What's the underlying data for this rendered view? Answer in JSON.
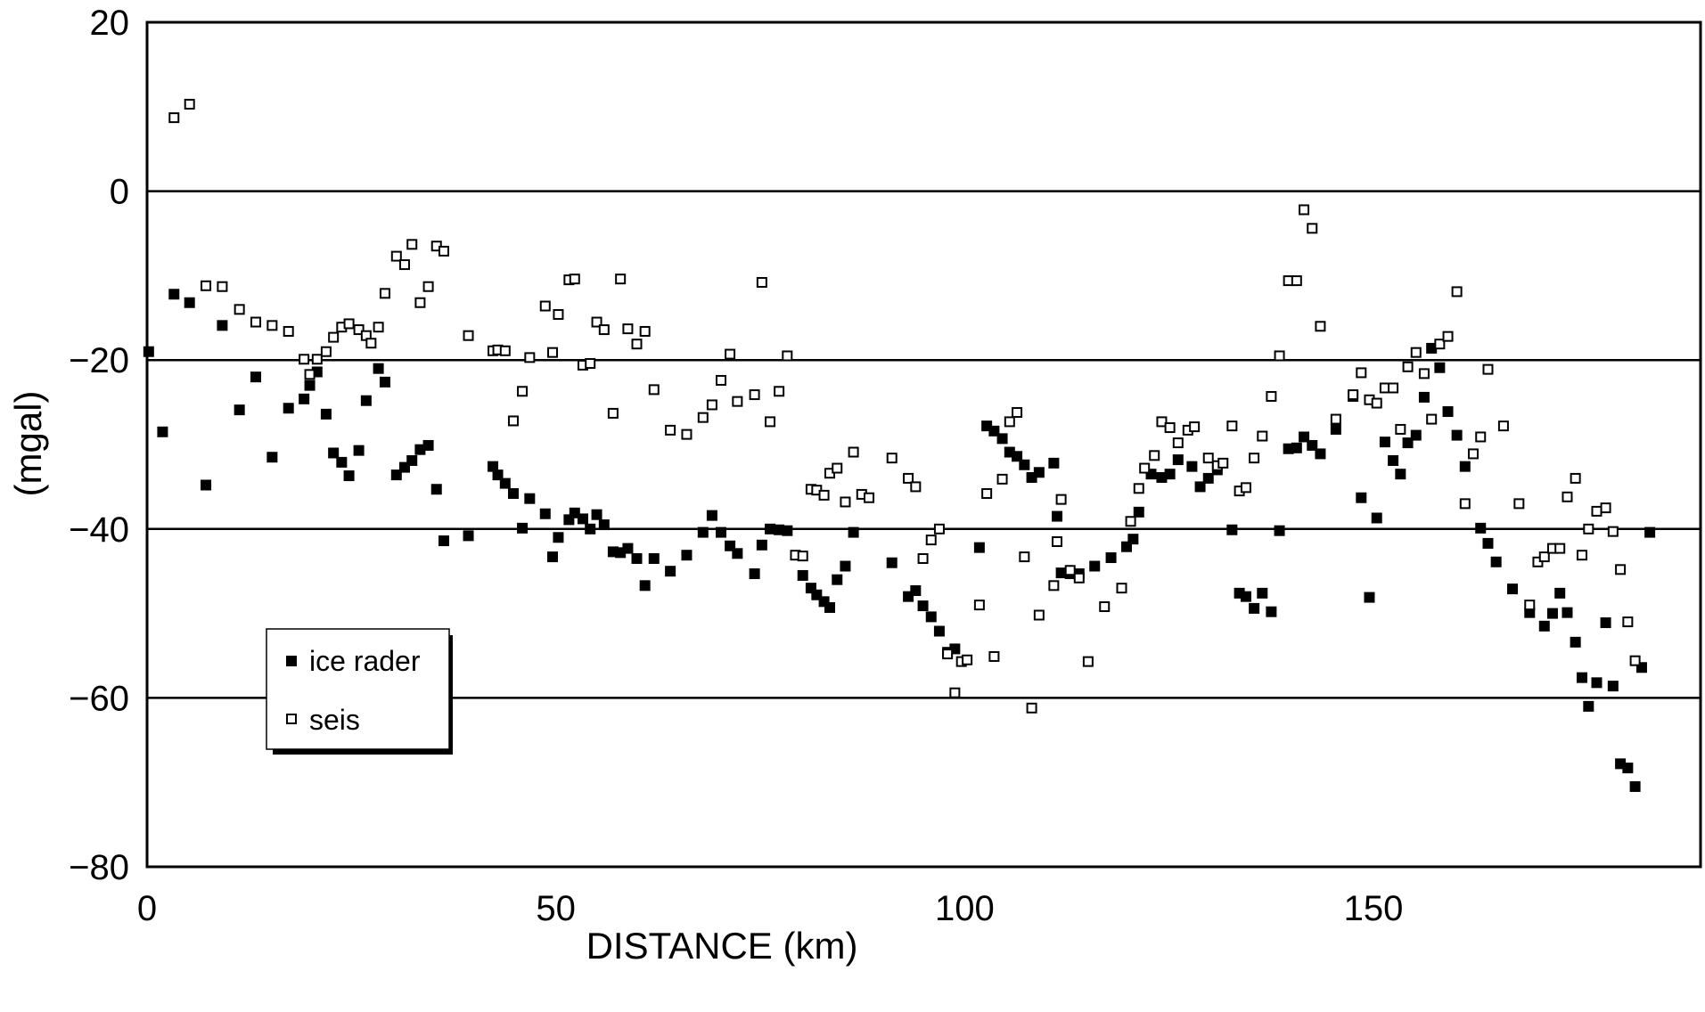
{
  "chart_data": {
    "type": "scatter",
    "title": "",
    "xlabel": "DISTANCE (km)",
    "ylabel": "(mgal)",
    "xlim": [
      0,
      190
    ],
    "ylim": [
      -80,
      20
    ],
    "xticks": [
      0,
      50,
      100,
      150
    ],
    "xtick_labels": [
      "0",
      "50",
      "100",
      "150"
    ],
    "yticks": [
      20,
      0,
      -20,
      -40,
      -60,
      -80
    ],
    "ytick_labels": [
      "20",
      "0",
      "−20",
      "−40",
      "−60",
      "−80"
    ],
    "grid": "horizontal lines at 0, −20, −40, −60",
    "legend_position": "bottom-left",
    "series": [
      {
        "name": "ice rader",
        "marker": "filled-square",
        "color": "#000000",
        "points": [
          [
            0.2,
            -19
          ],
          [
            1.9,
            -28.5
          ],
          [
            3.3,
            -12.2
          ],
          [
            5.2,
            -13.2
          ],
          [
            7.2,
            -34.8
          ],
          [
            9.2,
            -15.9
          ],
          [
            11.3,
            -25.9
          ],
          [
            13.3,
            -22
          ],
          [
            15.3,
            -31.5
          ],
          [
            17.3,
            -25.7
          ],
          [
            19.2,
            -24.6
          ],
          [
            19.9,
            -23
          ],
          [
            20.8,
            -21.4
          ],
          [
            21.9,
            -26.4
          ],
          [
            22.8,
            -31
          ],
          [
            23.8,
            -32.1
          ],
          [
            24.7,
            -33.7
          ],
          [
            25.9,
            -30.7
          ],
          [
            26.8,
            -24.8
          ],
          [
            28.3,
            -21
          ],
          [
            29.1,
            -22.6
          ],
          [
            30.5,
            -33.6
          ],
          [
            31.5,
            -32.7
          ],
          [
            32.4,
            -31.9
          ],
          [
            33.4,
            -30.6
          ],
          [
            34.4,
            -30.1
          ],
          [
            35.4,
            -35.3
          ],
          [
            36.3,
            -41.4
          ],
          [
            39.3,
            -40.8
          ],
          [
            42.3,
            -32.6
          ],
          [
            42.9,
            -33.6
          ],
          [
            43.8,
            -34.6
          ],
          [
            44.8,
            -35.8
          ],
          [
            45.9,
            -39.9
          ],
          [
            46.8,
            -36.4
          ],
          [
            48.7,
            -38.2
          ],
          [
            49.6,
            -43.3
          ],
          [
            50.3,
            -41
          ],
          [
            51.6,
            -38.9
          ],
          [
            52.3,
            -38.1
          ],
          [
            53.3,
            -38.8
          ],
          [
            54.2,
            -40
          ],
          [
            55.0,
            -38.3
          ],
          [
            55.9,
            -39.5
          ],
          [
            57.0,
            -42.7
          ],
          [
            57.9,
            -42.8
          ],
          [
            58.8,
            -42.3
          ],
          [
            59.9,
            -43.5
          ],
          [
            60.9,
            -46.7
          ],
          [
            62.0,
            -43.5
          ],
          [
            64.0,
            -45
          ],
          [
            66.0,
            -43.1
          ],
          [
            68.0,
            -40.4
          ],
          [
            69.1,
            -38.4
          ],
          [
            70.2,
            -40.4
          ],
          [
            71.3,
            -42
          ],
          [
            72.2,
            -42.9
          ],
          [
            74.3,
            -45.3
          ],
          [
            75.2,
            -41.9
          ],
          [
            76.2,
            -40
          ],
          [
            77.3,
            -40.1
          ],
          [
            78.3,
            -40.2
          ],
          [
            80.2,
            -45.5
          ],
          [
            81.2,
            -47
          ],
          [
            81.9,
            -47.8
          ],
          [
            82.8,
            -48.6
          ],
          [
            83.5,
            -49.3
          ],
          [
            84.4,
            -46
          ],
          [
            85.4,
            -44.4
          ],
          [
            86.4,
            -40.4
          ],
          [
            91.1,
            -44
          ],
          [
            93.1,
            -48
          ],
          [
            94.0,
            -47.3
          ],
          [
            94.9,
            -49.1
          ],
          [
            95.9,
            -50.4
          ],
          [
            96.9,
            -52.1
          ],
          [
            97.9,
            -54.6
          ],
          [
            98.8,
            -54.2
          ],
          [
            101.8,
            -42.2
          ],
          [
            102.7,
            -27.8
          ],
          [
            103.6,
            -28.4
          ],
          [
            104.6,
            -29.3
          ],
          [
            105.5,
            -30.9
          ],
          [
            106.4,
            -31.4
          ],
          [
            107.3,
            -32.4
          ],
          [
            108.2,
            -33.9
          ],
          [
            109.1,
            -33.3
          ],
          [
            110.9,
            -32.2
          ],
          [
            111.3,
            -38.5
          ],
          [
            111.8,
            -45.2
          ],
          [
            112.9,
            -45.3
          ],
          [
            114.0,
            -45.3
          ],
          [
            115.9,
            -44.4
          ],
          [
            117.9,
            -43.4
          ],
          [
            119.8,
            -42.1
          ],
          [
            120.6,
            -41.2
          ],
          [
            121.3,
            -38
          ],
          [
            122.8,
            -33.5
          ],
          [
            124.1,
            -33.9
          ],
          [
            125.1,
            -33.5
          ],
          [
            126.1,
            -31.8
          ],
          [
            127.8,
            -32.6
          ],
          [
            128.8,
            -35
          ],
          [
            129.8,
            -34
          ],
          [
            130.9,
            -33
          ],
          [
            132.7,
            -40.1
          ],
          [
            133.6,
            -47.6
          ],
          [
            134.4,
            -48
          ],
          [
            135.4,
            -49.4
          ],
          [
            136.4,
            -47.6
          ],
          [
            137.5,
            -49.8
          ],
          [
            138.5,
            -40.2
          ],
          [
            139.6,
            -30.5
          ],
          [
            140.6,
            -30.4
          ],
          [
            141.5,
            -29.1
          ],
          [
            142.5,
            -30.1
          ],
          [
            143.5,
            -31.1
          ],
          [
            145.4,
            -28.2
          ],
          [
            147.5,
            -24.3
          ],
          [
            148.5,
            -36.3
          ],
          [
            149.5,
            -48.1
          ],
          [
            150.4,
            -38.7
          ],
          [
            151.4,
            -29.7
          ],
          [
            152.4,
            -31.9
          ],
          [
            153.3,
            -33.5
          ],
          [
            154.2,
            -29.8
          ],
          [
            155.2,
            -28.9
          ],
          [
            156.2,
            -24.4
          ],
          [
            157.1,
            -18.6
          ],
          [
            158.1,
            -20.9
          ],
          [
            159.1,
            -26.1
          ],
          [
            160.2,
            -28.9
          ],
          [
            161.2,
            -32.6
          ],
          [
            163.1,
            -39.9
          ],
          [
            164.0,
            -41.7
          ],
          [
            165.0,
            -43.9
          ],
          [
            167.0,
            -47.1
          ],
          [
            169.1,
            -49.9
          ],
          [
            170.9,
            -51.5
          ],
          [
            171.9,
            -50
          ],
          [
            172.8,
            -47.6
          ],
          [
            173.7,
            -49.9
          ],
          [
            174.7,
            -53.4
          ],
          [
            175.5,
            -57.6
          ],
          [
            176.3,
            -61
          ],
          [
            177.3,
            -58.2
          ],
          [
            178.4,
            -51.1
          ],
          [
            179.3,
            -58.6
          ],
          [
            180.2,
            -67.8
          ],
          [
            181.1,
            -68.3
          ],
          [
            182.0,
            -70.5
          ],
          [
            182.8,
            -56.4
          ],
          [
            183.8,
            -40.4
          ]
        ]
      },
      {
        "name": "seis",
        "marker": "open-square",
        "color": "#000000",
        "points": [
          [
            3.3,
            8.7
          ],
          [
            5.2,
            10.3
          ],
          [
            7.2,
            -11.2
          ],
          [
            9.2,
            -11.3
          ],
          [
            11.3,
            -14
          ],
          [
            13.3,
            -15.5
          ],
          [
            15.3,
            -15.9
          ],
          [
            17.3,
            -16.6
          ],
          [
            19.2,
            -19.9
          ],
          [
            19.9,
            -21.7
          ],
          [
            20.8,
            -19.9
          ],
          [
            21.9,
            -19
          ],
          [
            22.8,
            -17.3
          ],
          [
            23.8,
            -16.1
          ],
          [
            24.7,
            -15.7
          ],
          [
            25.9,
            -16.4
          ],
          [
            26.8,
            -17.1
          ],
          [
            27.4,
            -18
          ],
          [
            28.3,
            -16.1
          ],
          [
            29.1,
            -12.1
          ],
          [
            30.5,
            -7.7
          ],
          [
            31.5,
            -8.7
          ],
          [
            32.4,
            -6.3
          ],
          [
            33.4,
            -13.2
          ],
          [
            34.4,
            -11.3
          ],
          [
            35.4,
            -6.5
          ],
          [
            36.3,
            -7.1
          ],
          [
            39.3,
            -17.1
          ],
          [
            42.3,
            -18.9
          ],
          [
            42.9,
            -18.8
          ],
          [
            43.8,
            -18.9
          ],
          [
            44.8,
            -27.2
          ],
          [
            45.9,
            -23.7
          ],
          [
            46.8,
            -19.7
          ],
          [
            48.7,
            -13.6
          ],
          [
            49.6,
            -19.1
          ],
          [
            50.3,
            -14.6
          ],
          [
            51.6,
            -10.5
          ],
          [
            52.3,
            -10.4
          ],
          [
            53.3,
            -20.6
          ],
          [
            54.2,
            -20.4
          ],
          [
            55.0,
            -15.5
          ],
          [
            55.9,
            -16.4
          ],
          [
            57.0,
            -26.3
          ],
          [
            57.9,
            -10.4
          ],
          [
            58.8,
            -16.3
          ],
          [
            59.9,
            -18.1
          ],
          [
            60.9,
            -16.6
          ],
          [
            62.0,
            -23.5
          ],
          [
            64.0,
            -28.3
          ],
          [
            66.0,
            -28.8
          ],
          [
            68.0,
            -26.8
          ],
          [
            69.1,
            -25.3
          ],
          [
            70.2,
            -22.4
          ],
          [
            71.3,
            -19.3
          ],
          [
            72.2,
            -24.9
          ],
          [
            74.3,
            -24.1
          ],
          [
            75.2,
            -10.8
          ],
          [
            76.2,
            -27.3
          ],
          [
            77.3,
            -23.7
          ],
          [
            78.3,
            -19.5
          ],
          [
            79.3,
            -43.1
          ],
          [
            80.2,
            -43.2
          ],
          [
            81.2,
            -35.3
          ],
          [
            81.9,
            -35.4
          ],
          [
            82.8,
            -36
          ],
          [
            83.5,
            -33.4
          ],
          [
            84.4,
            -32.8
          ],
          [
            85.4,
            -36.8
          ],
          [
            86.4,
            -30.9
          ],
          [
            87.4,
            -35.9
          ],
          [
            88.3,
            -36.3
          ],
          [
            91.1,
            -31.6
          ],
          [
            93.1,
            -34
          ],
          [
            94.0,
            -35
          ],
          [
            94.9,
            -43.5
          ],
          [
            95.9,
            -41.3
          ],
          [
            96.9,
            -40
          ],
          [
            97.9,
            -54.8
          ],
          [
            98.8,
            -59.4
          ],
          [
            99.6,
            -55.7
          ],
          [
            100.3,
            -55.5
          ],
          [
            101.8,
            -49
          ],
          [
            102.7,
            -35.8
          ],
          [
            103.6,
            -55.1
          ],
          [
            104.6,
            -34.1
          ],
          [
            105.5,
            -27.3
          ],
          [
            106.4,
            -26.2
          ],
          [
            107.3,
            -43.3
          ],
          [
            108.2,
            -61.2
          ],
          [
            109.1,
            -50.2
          ],
          [
            110.9,
            -46.7
          ],
          [
            111.3,
            -41.5
          ],
          [
            111.8,
            -36.5
          ],
          [
            112.9,
            -44.9
          ],
          [
            114.0,
            -45.8
          ],
          [
            115.1,
            -55.7
          ],
          [
            117.1,
            -49.2
          ],
          [
            119.2,
            -47
          ],
          [
            120.3,
            -39.1
          ],
          [
            121.3,
            -35.2
          ],
          [
            122.0,
            -32.8
          ],
          [
            123.2,
            -31.3
          ],
          [
            124.1,
            -27.3
          ],
          [
            125.1,
            -28
          ],
          [
            126.1,
            -29.8
          ],
          [
            127.3,
            -28.3
          ],
          [
            128.1,
            -27.9
          ],
          [
            129.8,
            -31.6
          ],
          [
            130.9,
            -32.5
          ],
          [
            131.6,
            -32.2
          ],
          [
            132.7,
            -27.8
          ],
          [
            133.6,
            -35.5
          ],
          [
            134.4,
            -35.1
          ],
          [
            135.4,
            -31.6
          ],
          [
            136.4,
            -29
          ],
          [
            137.5,
            -24.3
          ],
          [
            138.5,
            -19.5
          ],
          [
            139.6,
            -10.6
          ],
          [
            140.6,
            -10.6
          ],
          [
            141.5,
            -2.2
          ],
          [
            142.5,
            -4.4
          ],
          [
            143.5,
            -16
          ],
          [
            145.4,
            -27
          ],
          [
            147.5,
            -24.1
          ],
          [
            148.5,
            -21.5
          ],
          [
            149.5,
            -24.7
          ],
          [
            150.4,
            -25.1
          ],
          [
            151.4,
            -23.3
          ],
          [
            152.4,
            -23.3
          ],
          [
            153.3,
            -28.2
          ],
          [
            154.2,
            -20.8
          ],
          [
            155.2,
            -19.1
          ],
          [
            156.2,
            -21.6
          ],
          [
            157.1,
            -27
          ],
          [
            158.1,
            -18.1
          ],
          [
            159.1,
            -17.2
          ],
          [
            160.2,
            -11.9
          ],
          [
            161.2,
            -37
          ],
          [
            162.2,
            -31.1
          ],
          [
            163.1,
            -29.1
          ],
          [
            164.0,
            -21.1
          ],
          [
            165.9,
            -27.8
          ],
          [
            167.8,
            -37
          ],
          [
            169.1,
            -49
          ],
          [
            170.1,
            -43.9
          ],
          [
            170.9,
            -43.3
          ],
          [
            171.9,
            -42.3
          ],
          [
            172.8,
            -42.3
          ],
          [
            173.7,
            -36.2
          ],
          [
            174.7,
            -34
          ],
          [
            175.5,
            -43.1
          ],
          [
            176.3,
            -40
          ],
          [
            177.3,
            -37.9
          ],
          [
            178.4,
            -37.5
          ],
          [
            179.3,
            -40.3
          ],
          [
            180.2,
            -44.8
          ],
          [
            181.1,
            -51
          ],
          [
            182.0,
            -55.6
          ]
        ]
      }
    ]
  }
}
